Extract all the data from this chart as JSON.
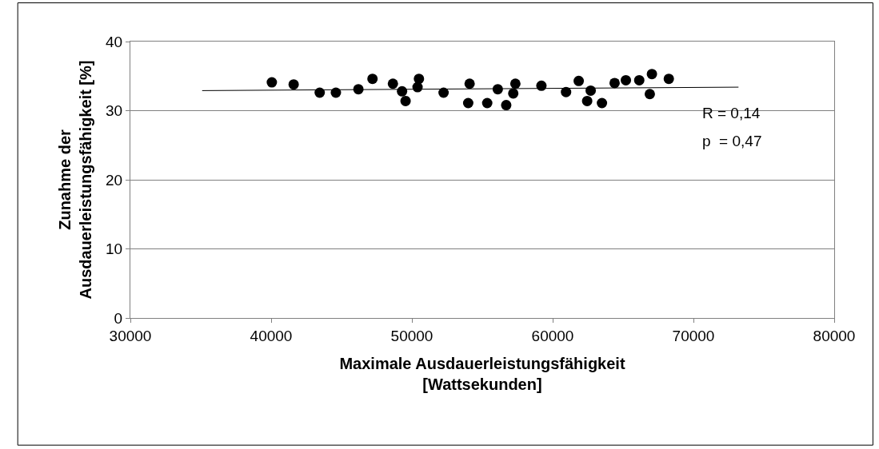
{
  "chart_data": {
    "type": "scatter",
    "xlabel": "Maximale Ausdauerleistungsfähigkeit\n[Wattsekunden]",
    "ylabel": "Zunahme der\nAusdauerleistungsfähigkeit [%]",
    "xlim": [
      30000,
      80000
    ],
    "xticks": [
      30000,
      40000,
      50000,
      60000,
      70000,
      80000
    ],
    "ylim": [
      0,
      40
    ],
    "yticks": [
      0,
      10,
      20,
      30,
      40
    ],
    "grid": "y",
    "legend": false,
    "marker": "circle",
    "series": [
      {
        "color": "#000000",
        "x": [
          40050,
          41600,
          43450,
          44600,
          46200,
          47200,
          48650,
          49300,
          49550,
          50500,
          50400,
          52250,
          54100,
          54000,
          55350,
          56100,
          56700,
          57350,
          57200,
          59200,
          60950,
          61850,
          62700,
          62450,
          63500,
          64400,
          65200,
          66150,
          67050,
          66900,
          68250
        ],
        "values": [
          34.1,
          33.8,
          32.6,
          32.6,
          33.1,
          34.6,
          33.9,
          32.8,
          31.4,
          34.6,
          33.4,
          32.6,
          33.9,
          31.1,
          31.1,
          33.1,
          30.8,
          33.9,
          32.5,
          33.6,
          32.7,
          34.3,
          32.9,
          31.4,
          31.1,
          34.0,
          34.4,
          34.4,
          35.3,
          32.4,
          34.6
        ]
      },
      {
        "type": "line",
        "color": "#000000",
        "x": [
          35100,
          73200
        ],
        "values": [
          32.9,
          33.4
        ],
        "marker": "none"
      }
    ],
    "annotations": [
      "R = 0,14",
      "p  = 0,47"
    ]
  }
}
